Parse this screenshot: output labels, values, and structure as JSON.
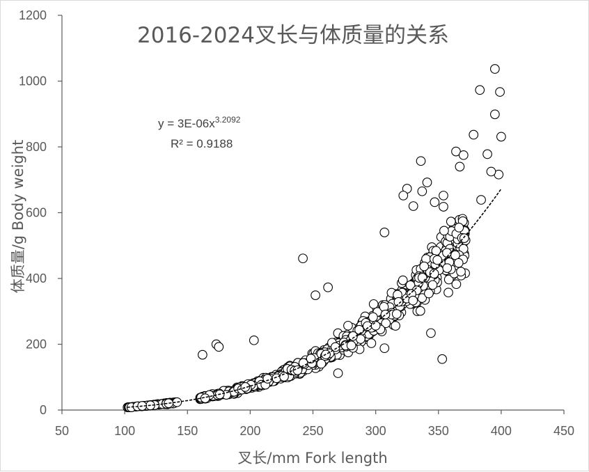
{
  "chart_data": {
    "type": "scatter",
    "title": "2016-2024叉长与体质量的关系",
    "xlabel": "叉长/mm Fork length",
    "ylabel": "体质量/g Body weight",
    "xlim": [
      50,
      450
    ],
    "ylim": [
      0,
      1200
    ],
    "x_ticks": [
      50,
      100,
      150,
      200,
      250,
      300,
      350,
      400,
      450
    ],
    "y_ticks": [
      0,
      200,
      400,
      600,
      800,
      1000,
      1200
    ],
    "grid": false,
    "legend": "none",
    "marker": "open-circle",
    "trendline": {
      "type": "power",
      "a": 3e-06,
      "b": 3.2092,
      "x_range": [
        102,
        400
      ],
      "equation_prefix": "y = 3E-06x",
      "equation_exponent": "3.2092",
      "r2_label": "R² = 0.9188"
    },
    "outliers": [
      {
        "x": 395,
        "y": 1037
      },
      {
        "x": 383,
        "y": 973
      },
      {
        "x": 399,
        "y": 967
      },
      {
        "x": 395,
        "y": 899
      },
      {
        "x": 378,
        "y": 837
      },
      {
        "x": 400,
        "y": 831
      },
      {
        "x": 389,
        "y": 778
      },
      {
        "x": 364,
        "y": 786
      },
      {
        "x": 370,
        "y": 775
      },
      {
        "x": 336,
        "y": 757
      },
      {
        "x": 398,
        "y": 716
      },
      {
        "x": 392,
        "y": 725
      },
      {
        "x": 367,
        "y": 740
      },
      {
        "x": 341,
        "y": 692
      },
      {
        "x": 325,
        "y": 673
      },
      {
        "x": 354,
        "y": 652
      },
      {
        "x": 322,
        "y": 652
      },
      {
        "x": 337,
        "y": 665
      },
      {
        "x": 384,
        "y": 639
      },
      {
        "x": 347,
        "y": 632
      },
      {
        "x": 354,
        "y": 618
      },
      {
        "x": 307,
        "y": 540
      },
      {
        "x": 242,
        "y": 461
      },
      {
        "x": 344,
        "y": 234
      },
      {
        "x": 353,
        "y": 155
      },
      {
        "x": 173,
        "y": 200
      },
      {
        "x": 175,
        "y": 192
      },
      {
        "x": 162,
        "y": 168
      },
      {
        "x": 203,
        "y": 212
      },
      {
        "x": 262,
        "y": 373
      },
      {
        "x": 270,
        "y": 112
      },
      {
        "x": 307,
        "y": 188
      },
      {
        "x": 252,
        "y": 349
      },
      {
        "x": 360,
        "y": 573
      },
      {
        "x": 330,
        "y": 620
      }
    ]
  }
}
